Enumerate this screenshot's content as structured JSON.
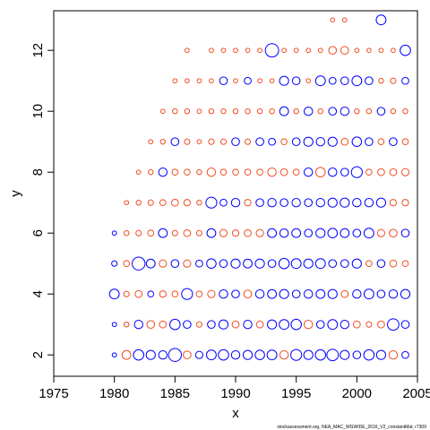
{
  "chart_data": {
    "type": "scatter",
    "title": "",
    "xlabel": "x",
    "ylabel": "y",
    "xlim": [
      1975,
      2005
    ],
    "ylim": [
      1.3,
      13.3
    ],
    "x_ticks": [
      1975,
      1980,
      1985,
      1990,
      1995,
      2000,
      2005
    ],
    "y_ticks": [
      2,
      4,
      6,
      8,
      10,
      12
    ],
    "grid": false,
    "legend": "none",
    "footer_text": "stockassessment.org,  NEA_MAC_WGWIDE_2016_V2_constantMat,  r7309",
    "colors": {
      "positive": "#0000FF",
      "negative": "#F04E23"
    },
    "points": [
      [
        1980,
        2,
        0.3
      ],
      [
        1980,
        3,
        0.3
      ],
      [
        1980,
        4,
        1.6
      ],
      [
        1980,
        5,
        0.5
      ],
      [
        1980,
        6,
        0.3
      ],
      [
        1981,
        2,
        -1.3
      ],
      [
        1981,
        3,
        -0.4
      ],
      [
        1981,
        4,
        -0.5
      ],
      [
        1981,
        5,
        -0.6
      ],
      [
        1981,
        6,
        -0.4
      ],
      [
        1981,
        7,
        -0.3
      ],
      [
        1982,
        2,
        1.8
      ],
      [
        1982,
        3,
        1.2
      ],
      [
        1982,
        4,
        -0.8
      ],
      [
        1982,
        5,
        2.8
      ],
      [
        1982,
        6,
        -0.5
      ],
      [
        1982,
        7,
        -0.4
      ],
      [
        1982,
        8,
        -0.3
      ],
      [
        1983,
        2,
        1.4
      ],
      [
        1983,
        3,
        -1.0
      ],
      [
        1983,
        4,
        0.6
      ],
      [
        1983,
        5,
        1.3
      ],
      [
        1983,
        6,
        -0.6
      ],
      [
        1983,
        7,
        -0.5
      ],
      [
        1983,
        8,
        -0.4
      ],
      [
        1983,
        9,
        -0.3
      ],
      [
        1984,
        2,
        1.2
      ],
      [
        1984,
        3,
        -0.8
      ],
      [
        1984,
        4,
        -0.7
      ],
      [
        1984,
        5,
        -0.9
      ],
      [
        1984,
        6,
        1.3
      ],
      [
        1984,
        7,
        -0.6
      ],
      [
        1984,
        8,
        1.2
      ],
      [
        1984,
        9,
        -0.4
      ],
      [
        1984,
        10,
        -0.3
      ],
      [
        1985,
        2,
        2.8
      ],
      [
        1985,
        3,
        1.8
      ],
      [
        1985,
        4,
        -0.6
      ],
      [
        1985,
        5,
        1.0
      ],
      [
        1985,
        6,
        -0.5
      ],
      [
        1985,
        7,
        -0.8
      ],
      [
        1985,
        8,
        -0.6
      ],
      [
        1985,
        9,
        1.0
      ],
      [
        1985,
        10,
        -0.4
      ],
      [
        1985,
        11,
        -0.3
      ],
      [
        1986,
        2,
        -1.0
      ],
      [
        1986,
        3,
        1.0
      ],
      [
        1986,
        4,
        2.0
      ],
      [
        1986,
        5,
        -0.9
      ],
      [
        1986,
        6,
        -0.8
      ],
      [
        1986,
        7,
        -0.7
      ],
      [
        1986,
        8,
        -0.6
      ],
      [
        1986,
        9,
        -0.5
      ],
      [
        1986,
        10,
        -0.4
      ],
      [
        1986,
        11,
        -0.3
      ],
      [
        1986,
        12,
        -0.3
      ],
      [
        1987,
        2,
        0.9
      ],
      [
        1987,
        3,
        -0.5
      ],
      [
        1987,
        4,
        -0.6
      ],
      [
        1987,
        5,
        0.8
      ],
      [
        1987,
        6,
        -0.5
      ],
      [
        1987,
        7,
        -0.4
      ],
      [
        1987,
        8,
        -0.4
      ],
      [
        1987,
        9,
        -0.3
      ],
      [
        1987,
        10,
        -0.3
      ],
      [
        1987,
        11,
        -0.3
      ],
      [
        1988,
        2,
        1.6
      ],
      [
        1988,
        3,
        1.0
      ],
      [
        1988,
        4,
        -0.9
      ],
      [
        1988,
        5,
        1.5
      ],
      [
        1988,
        6,
        1.3
      ],
      [
        1988,
        7,
        2.0
      ],
      [
        1988,
        8,
        -1.2
      ],
      [
        1988,
        9,
        -0.5
      ],
      [
        1988,
        10,
        -0.4
      ],
      [
        1988,
        11,
        -0.3
      ],
      [
        1988,
        12,
        -0.3
      ],
      [
        1989,
        2,
        1.8
      ],
      [
        1989,
        3,
        1.4
      ],
      [
        1989,
        4,
        1.2
      ],
      [
        1989,
        5,
        1.0
      ],
      [
        1989,
        6,
        -0.9
      ],
      [
        1989,
        7,
        0.8
      ],
      [
        1989,
        8,
        -0.6
      ],
      [
        1989,
        9,
        -0.5
      ],
      [
        1989,
        10,
        -0.4
      ],
      [
        1989,
        11,
        1.0
      ],
      [
        1989,
        12,
        -0.3
      ],
      [
        1990,
        2,
        1.2
      ],
      [
        1990,
        3,
        -0.8
      ],
      [
        1990,
        4,
        1.0
      ],
      [
        1990,
        5,
        1.4
      ],
      [
        1990,
        6,
        -0.7
      ],
      [
        1990,
        7,
        1.2
      ],
      [
        1990,
        8,
        -0.6
      ],
      [
        1990,
        9,
        1.0
      ],
      [
        1990,
        10,
        -0.4
      ],
      [
        1990,
        11,
        -0.3
      ],
      [
        1990,
        12,
        -0.3
      ],
      [
        1991,
        2,
        1.4
      ],
      [
        1991,
        3,
        1.2
      ],
      [
        1991,
        4,
        -1.0
      ],
      [
        1991,
        5,
        1.3
      ],
      [
        1991,
        6,
        -0.8
      ],
      [
        1991,
        7,
        -0.7
      ],
      [
        1991,
        8,
        -0.6
      ],
      [
        1991,
        9,
        -0.5
      ],
      [
        1991,
        10,
        -0.4
      ],
      [
        1991,
        11,
        0.8
      ],
      [
        1991,
        12,
        -0.3
      ],
      [
        1992,
        2,
        1.5
      ],
      [
        1992,
        3,
        -0.8
      ],
      [
        1992,
        4,
        1.2
      ],
      [
        1992,
        5,
        1.4
      ],
      [
        1992,
        6,
        -0.9
      ],
      [
        1992,
        7,
        1.0
      ],
      [
        1992,
        8,
        -0.6
      ],
      [
        1992,
        9,
        1.0
      ],
      [
        1992,
        10,
        -0.4
      ],
      [
        1992,
        11,
        -0.3
      ],
      [
        1992,
        12,
        -0.3
      ],
      [
        1993,
        2,
        1.6
      ],
      [
        1993,
        3,
        1.4
      ],
      [
        1993,
        4,
        1.3
      ],
      [
        1993,
        5,
        1.0
      ],
      [
        1993,
        6,
        1.3
      ],
      [
        1993,
        7,
        1.2
      ],
      [
        1993,
        8,
        -1.2
      ],
      [
        1993,
        9,
        0.8
      ],
      [
        1993,
        10,
        -0.4
      ],
      [
        1993,
        11,
        -0.3
      ],
      [
        1993,
        12,
        3.0
      ],
      [
        1994,
        2,
        -1.2
      ],
      [
        1994,
        3,
        1.6
      ],
      [
        1994,
        4,
        1.4
      ],
      [
        1994,
        5,
        1.8
      ],
      [
        1994,
        6,
        1.2
      ],
      [
        1994,
        7,
        1.0
      ],
      [
        1994,
        8,
        -0.8
      ],
      [
        1994,
        9,
        -0.6
      ],
      [
        1994,
        10,
        1.3
      ],
      [
        1994,
        11,
        1.4
      ],
      [
        1994,
        12,
        -0.3
      ],
      [
        1995,
        2,
        2.0
      ],
      [
        1995,
        3,
        1.8
      ],
      [
        1995,
        4,
        1.0
      ],
      [
        1995,
        5,
        1.6
      ],
      [
        1995,
        6,
        1.3
      ],
      [
        1995,
        7,
        1.2
      ],
      [
        1995,
        8,
        -0.6
      ],
      [
        1995,
        9,
        1.0
      ],
      [
        1995,
        10,
        -0.4
      ],
      [
        1995,
        11,
        1.0
      ],
      [
        1995,
        12,
        -0.3
      ],
      [
        1996,
        2,
        1.4
      ],
      [
        1996,
        3,
        -1.2
      ],
      [
        1996,
        4,
        1.2
      ],
      [
        1996,
        5,
        1.4
      ],
      [
        1996,
        6,
        1.0
      ],
      [
        1996,
        7,
        1.0
      ],
      [
        1996,
        8,
        1.2
      ],
      [
        1996,
        9,
        1.4
      ],
      [
        1996,
        10,
        1.2
      ],
      [
        1996,
        11,
        -0.3
      ],
      [
        1996,
        12,
        -0.3
      ],
      [
        1997,
        2,
        1.8
      ],
      [
        1997,
        3,
        1.0
      ],
      [
        1997,
        4,
        1.3
      ],
      [
        1997,
        5,
        1.6
      ],
      [
        1997,
        6,
        1.4
      ],
      [
        1997,
        7,
        1.2
      ],
      [
        1997,
        8,
        -1.5
      ],
      [
        1997,
        9,
        1.2
      ],
      [
        1997,
        10,
        -0.4
      ],
      [
        1997,
        11,
        1.6
      ],
      [
        1997,
        12,
        -0.3
      ],
      [
        1998,
        2,
        2.2
      ],
      [
        1998,
        3,
        1.6
      ],
      [
        1998,
        4,
        1.4
      ],
      [
        1998,
        5,
        1.0
      ],
      [
        1998,
        6,
        1.5
      ],
      [
        1998,
        7,
        1.4
      ],
      [
        1998,
        8,
        1.2
      ],
      [
        1998,
        9,
        1.4
      ],
      [
        1998,
        10,
        1.0
      ],
      [
        1998,
        11,
        0.8
      ],
      [
        1998,
        12,
        -1.0
      ],
      [
        1998,
        13,
        -0.3
      ],
      [
        1999,
        2,
        1.4
      ],
      [
        1999,
        3,
        1.2
      ],
      [
        1999,
        4,
        -0.8
      ],
      [
        1999,
        5,
        1.0
      ],
      [
        1999,
        6,
        1.3
      ],
      [
        1999,
        7,
        1.4
      ],
      [
        1999,
        8,
        1.0
      ],
      [
        1999,
        9,
        -0.8
      ],
      [
        1999,
        10,
        1.2
      ],
      [
        1999,
        11,
        1.0
      ],
      [
        1999,
        12,
        -1.0
      ],
      [
        1999,
        13,
        -0.3
      ],
      [
        2000,
        2,
        1.0
      ],
      [
        2000,
        3,
        -0.8
      ],
      [
        2000,
        4,
        1.2
      ],
      [
        2000,
        5,
        1.4
      ],
      [
        2000,
        6,
        1.0
      ],
      [
        2000,
        7,
        1.2
      ],
      [
        2000,
        8,
        2.0
      ],
      [
        2000,
        9,
        1.5
      ],
      [
        2000,
        10,
        -0.4
      ],
      [
        2000,
        11,
        1.6
      ],
      [
        2000,
        12,
        -0.3
      ],
      [
        2001,
        2,
        1.8
      ],
      [
        2001,
        3,
        -0.5
      ],
      [
        2001,
        4,
        1.6
      ],
      [
        2001,
        5,
        -0.6
      ],
      [
        2001,
        6,
        1.6
      ],
      [
        2001,
        7,
        1.2
      ],
      [
        2001,
        8,
        -0.6
      ],
      [
        2001,
        9,
        1.0
      ],
      [
        2001,
        10,
        -0.4
      ],
      [
        2001,
        11,
        1.0
      ],
      [
        2001,
        12,
        -0.3
      ],
      [
        2002,
        2,
        1.4
      ],
      [
        2002,
        3,
        -0.8
      ],
      [
        2002,
        4,
        1.0
      ],
      [
        2002,
        5,
        1.0
      ],
      [
        2002,
        6,
        -0.9
      ],
      [
        2002,
        7,
        1.4
      ],
      [
        2002,
        8,
        -0.8
      ],
      [
        2002,
        9,
        -0.6
      ],
      [
        2002,
        10,
        1.0
      ],
      [
        2002,
        11,
        -0.4
      ],
      [
        2002,
        12,
        -0.3
      ],
      [
        2002,
        13,
        1.6
      ],
      [
        2003,
        2,
        -1.2
      ],
      [
        2003,
        3,
        2.2
      ],
      [
        2003,
        4,
        1.2
      ],
      [
        2003,
        5,
        -0.8
      ],
      [
        2003,
        6,
        -1.0
      ],
      [
        2003,
        7,
        -0.7
      ],
      [
        2003,
        8,
        -0.8
      ],
      [
        2003,
        9,
        1.0
      ],
      [
        2003,
        10,
        -0.4
      ],
      [
        2003,
        11,
        -0.5
      ],
      [
        2003,
        12,
        -0.3
      ],
      [
        2004,
        2,
        0.8
      ],
      [
        2004,
        3,
        1.0
      ],
      [
        2004,
        4,
        1.4
      ],
      [
        2004,
        5,
        -0.6
      ],
      [
        2004,
        6,
        1.0
      ],
      [
        2004,
        7,
        -0.7
      ],
      [
        2004,
        8,
        -0.9
      ],
      [
        2004,
        9,
        -0.6
      ],
      [
        2004,
        10,
        -0.4
      ],
      [
        2004,
        11,
        0.8
      ],
      [
        2004,
        12,
        1.8
      ]
    ]
  }
}
